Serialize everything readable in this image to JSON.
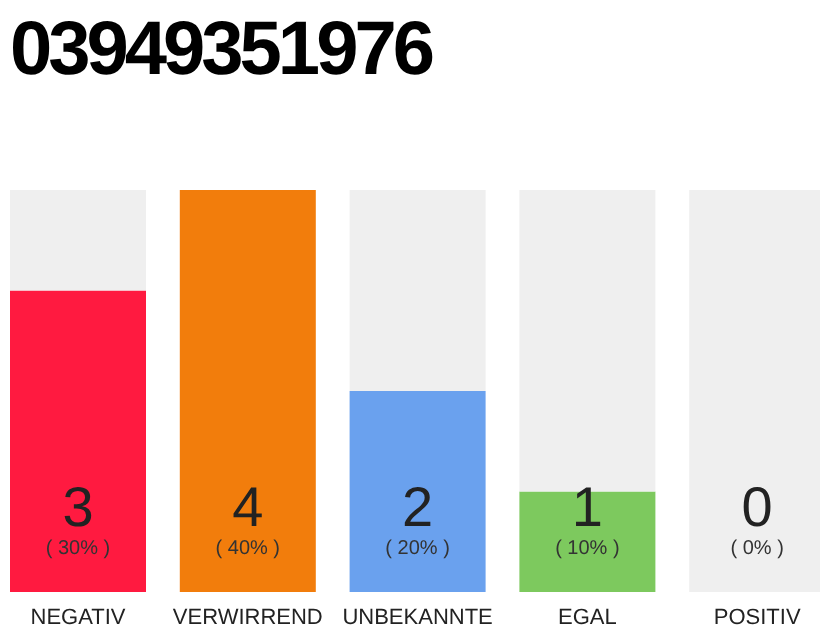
{
  "chart_data": {
    "type": "bar",
    "title": "03949351976",
    "categories": [
      "NEGATIV",
      "VERWIRREND",
      "UNBEKANNTE",
      "EGAL",
      "POSITIV"
    ],
    "stacked": true,
    "series": [
      {
        "colors": [
          "#ff1a40",
          "#f27d0c",
          "#6aa1ee",
          "#7dc95e",
          "#e0e0e0"
        ],
        "values": [
          3,
          4,
          2,
          1,
          0
        ],
        "value_labels": [
          "3",
          "4",
          "2",
          "1",
          null
        ]
      },
      {
        "color": "#efefef",
        "values": [
          1,
          0,
          2,
          3,
          4
        ]
      }
    ],
    "ylim": [
      0,
      4
    ],
    "tick_labels": "x",
    "annotations": [
      "( 30% )",
      "( 40% )",
      "( 20% )",
      "( 10% )",
      "( 0% )",
      "0"
    ]
  }
}
